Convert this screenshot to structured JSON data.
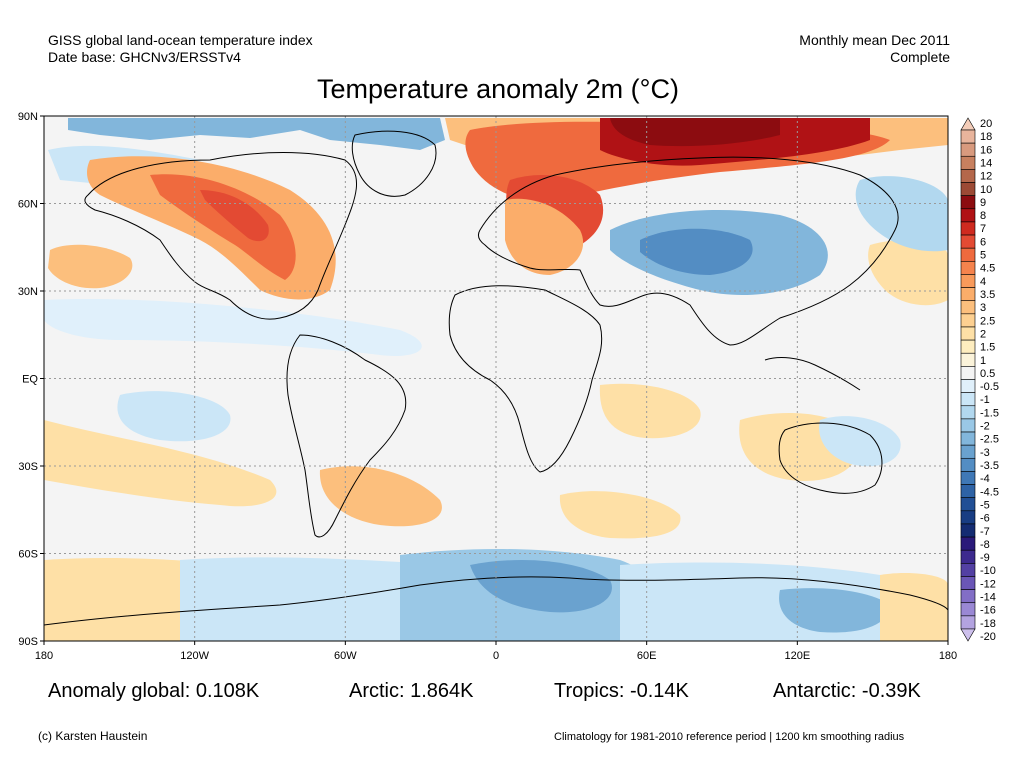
{
  "header": {
    "left_line1": "GISS global land-ocean temperature index",
    "left_line2": "Date base: GHCNv3/ERSSTv4",
    "right_line1": "Monthly mean Dec 2011",
    "right_line2": "Complete"
  },
  "title": "Temperature anomaly 2m (°C)",
  "stats": {
    "global": "Anomaly global: 0.108K",
    "arctic": "Arctic: 1.864K",
    "tropics": "Tropics: -0.14K",
    "antarctic": "Antarctic: -0.39K"
  },
  "footer": {
    "credit": "(c) Karsten Haustein",
    "note": "Climatology for 1981-2010 reference period | 1200 km smoothing radius"
  },
  "chart_data": {
    "type": "heatmap",
    "title": "Temperature anomaly 2m (°C)",
    "x_ticks": [
      {
        "value": -180,
        "label": "180"
      },
      {
        "value": -120,
        "label": "120W"
      },
      {
        "value": -60,
        "label": "60W"
      },
      {
        "value": 0,
        "label": "0"
      },
      {
        "value": 60,
        "label": "60E"
      },
      {
        "value": 120,
        "label": "120E"
      },
      {
        "value": 180,
        "label": "180"
      }
    ],
    "y_ticks": [
      {
        "value": 90,
        "label": "90N"
      },
      {
        "value": 60,
        "label": "60N"
      },
      {
        "value": 30,
        "label": "30N"
      },
      {
        "value": 0,
        "label": "EQ"
      },
      {
        "value": -30,
        "label": "30S"
      },
      {
        "value": -60,
        "label": "60S"
      },
      {
        "value": -90,
        "label": "90S"
      }
    ],
    "xlim": [
      -180,
      180
    ],
    "ylim": [
      -90,
      90
    ],
    "grid": true,
    "legend_placement": "right",
    "colorbar": [
      {
        "label": "20",
        "color": "#f4cdb9"
      },
      {
        "label": "18",
        "color": "#e8b49c"
      },
      {
        "label": "16",
        "color": "#d89a7e"
      },
      {
        "label": "14",
        "color": "#c7805f"
      },
      {
        "label": "12",
        "color": "#b4674b"
      },
      {
        "label": "10",
        "color": "#9c4a35"
      },
      {
        "label": "9",
        "color": "#8c0c10"
      },
      {
        "label": "8",
        "color": "#b01215"
      },
      {
        "label": "7",
        "color": "#cf2a1f"
      },
      {
        "label": "6",
        "color": "#e34a33"
      },
      {
        "label": "5",
        "color": "#ef6a3e"
      },
      {
        "label": "4.5",
        "color": "#f5834d"
      },
      {
        "label": "4",
        "color": "#f89a5b"
      },
      {
        "label": "3.5",
        "color": "#fbad6a"
      },
      {
        "label": "3",
        "color": "#fcbf7d"
      },
      {
        "label": "2.5",
        "color": "#fdd091"
      },
      {
        "label": "2",
        "color": "#fee0a6"
      },
      {
        "label": "1.5",
        "color": "#feedbf"
      },
      {
        "label": "1",
        "color": "#fbf3da"
      },
      {
        "label": "0.5",
        "color": "#f4f4f4"
      },
      {
        "label": "-0.5",
        "color": "#e0f0fb"
      },
      {
        "label": "-1",
        "color": "#cbe6f7"
      },
      {
        "label": "-1.5",
        "color": "#b2d8ef"
      },
      {
        "label": "-2",
        "color": "#9ac8e6"
      },
      {
        "label": "-2.5",
        "color": "#82b6db"
      },
      {
        "label": "-3",
        "color": "#6aa2cf"
      },
      {
        "label": "-3.5",
        "color": "#538dc3"
      },
      {
        "label": "-4",
        "color": "#3f78b6"
      },
      {
        "label": "-4.5",
        "color": "#2e63a6"
      },
      {
        "label": "-5",
        "color": "#214f95"
      },
      {
        "label": "-6",
        "color": "#183d83"
      },
      {
        "label": "-7",
        "color": "#142c72"
      },
      {
        "label": "-8",
        "color": "#2a1a7a"
      },
      {
        "label": "-9",
        "color": "#3d2a8e"
      },
      {
        "label": "-10",
        "color": "#5340a3"
      },
      {
        "label": "-12",
        "color": "#6a56b6"
      },
      {
        "label": "-14",
        "color": "#826ec6"
      },
      {
        "label": "-16",
        "color": "#9a88d4"
      },
      {
        "label": "-18",
        "color": "#b3a3e0"
      },
      {
        "label": "-20",
        "color": "#cdc0ec"
      }
    ]
  }
}
